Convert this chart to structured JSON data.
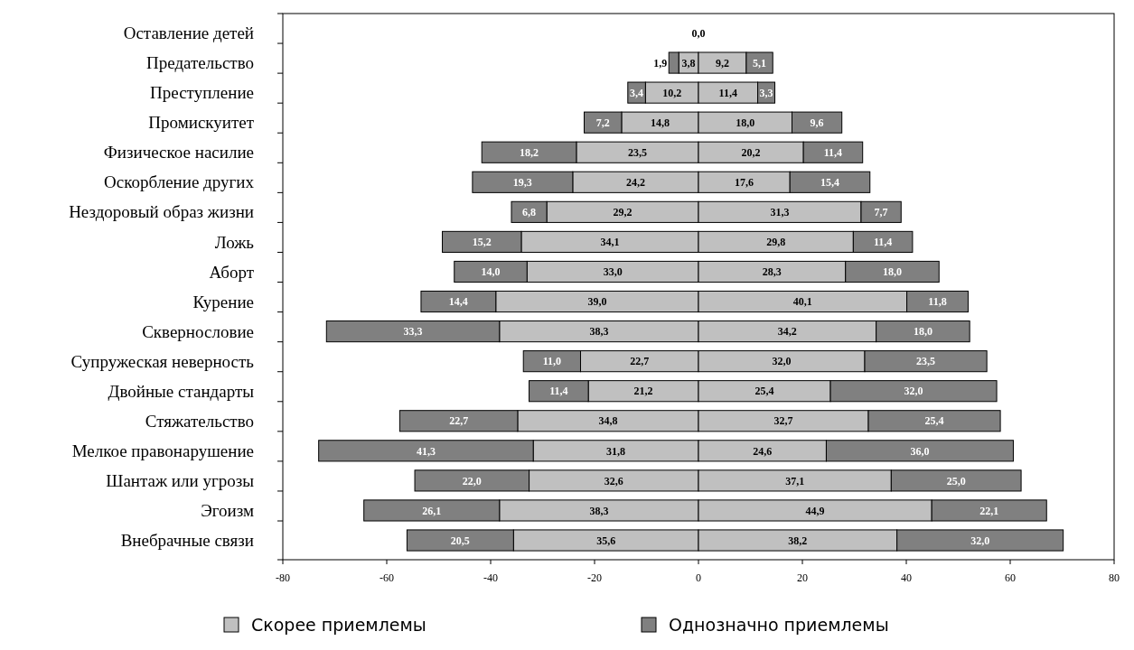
{
  "chart_data": {
    "type": "bar",
    "orientation": "horizontal",
    "categories": [
      "Оставление детей",
      "Предательство",
      "Преступление",
      "Промискуитет",
      "Физическое насилие",
      "Оскорбление других",
      "Нездоровый образ жизни",
      "Ложь ",
      "Аборт",
      "Курение",
      "Сквернословие",
      "Супружеская неверность",
      "Двойные стандарты",
      "Стяжательство",
      "Мелкое правонарушение",
      "Шантаж или угрозы",
      "Эгоизм",
      "Внебрачные связи"
    ],
    "series": [
      {
        "color": "#c0c0c0",
        "values": [
          null,
          3.8,
          10.2,
          14.8,
          23.5,
          24.2,
          29.2,
          34.1,
          33.0,
          39.0,
          38.3,
          22.7,
          21.2,
          34.8,
          31.8,
          32.6,
          38.3,
          35.6
        ],
        "base": [
          null,
          -3.8,
          -10.2,
          -14.8,
          -23.5,
          -24.2,
          -29.2,
          -34.1,
          -33.0,
          -39.0,
          -38.3,
          -22.7,
          -21.2,
          -34.8,
          -31.8,
          -32.6,
          -38.3,
          -35.6
        ],
        "value_labels": [
          null,
          "3,8",
          "10,2",
          "14,8",
          "23,5",
          "24,2",
          "29,2",
          "34,1",
          "33,0",
          "39,0",
          "38,3",
          "22,7",
          "21,2",
          "34,8",
          "31,8",
          "32,6",
          "38,3",
          "35,6"
        ]
      },
      {
        "name": "Скорее приемлемы",
        "color": "#c0c0c0",
        "values": [
          0,
          9.2,
          11.4,
          18.0,
          20.2,
          17.6,
          31.3,
          29.8,
          28.3,
          40.1,
          34.2,
          32.0,
          25.4,
          32.7,
          24.6,
          37.1,
          44.9,
          38.2
        ],
        "base": [
          null,
          0,
          0,
          0,
          0,
          0,
          0,
          0,
          0,
          0,
          0,
          0,
          0,
          0,
          0,
          0,
          0,
          0
        ],
        "value_labels": [
          "0,0",
          "9,2",
          "11,4",
          "18,0",
          "20,2",
          "17,6",
          "31,3",
          "29,8",
          "28,3",
          "40,1",
          "34,2",
          "32,0",
          "25,4",
          "32,7",
          "24,6",
          "37,1",
          "44,9",
          "38,2"
        ]
      },
      {
        "color": "#808080",
        "values": [
          null,
          1.9,
          3.4,
          7.2,
          18.2,
          19.3,
          6.8,
          15.2,
          14.0,
          14.4,
          33.3,
          11.0,
          11.4,
          22.7,
          41.3,
          22.0,
          26.1,
          20.5
        ],
        "base": [
          null,
          -5.7,
          -13.6,
          -22.0,
          -41.7,
          -43.5,
          -36.0,
          -49.3,
          -47.0,
          -53.4,
          -71.6,
          -33.7,
          -32.6,
          -57.5,
          -73.1,
          -54.6,
          -64.4,
          -56.1
        ],
        "value_labels": [
          null,
          "1,9",
          "3,4",
          "7,2",
          "18,2",
          "19,3",
          "6,8",
          "15,2",
          "14,0",
          "14,4",
          "33,3",
          "11,0",
          "11,4",
          "22,7",
          "41,3",
          "22,0",
          "26,1",
          "20,5"
        ]
      },
      {
        "name": "Однозначно приемлемы",
        "color": "#808080",
        "values": [
          null,
          5.1,
          3.3,
          9.6,
          11.4,
          15.4,
          7.7,
          11.4,
          18.0,
          11.8,
          18.0,
          23.5,
          32.0,
          25.4,
          36.0,
          25.0,
          22.1,
          32.0
        ],
        "base": [
          null,
          9.2,
          11.4,
          18.0,
          20.2,
          17.6,
          31.3,
          29.8,
          28.3,
          40.1,
          34.2,
          32.0,
          25.4,
          32.7,
          24.6,
          37.1,
          44.9,
          38.2
        ],
        "value_labels": [
          null,
          "5,1",
          "3,3",
          "9,6",
          "11,4",
          "15,4",
          "7,7",
          "11,4",
          "18,0",
          "11,8",
          "18,0",
          "23,5",
          "32,0",
          "25,4",
          "36,0",
          "25,0",
          "22,1",
          "32,0"
        ]
      }
    ],
    "xlim": [
      -80,
      80
    ],
    "xticks": [
      -80,
      -60,
      -40,
      -20,
      0,
      20,
      40,
      60,
      80
    ],
    "legend": "bottom"
  }
}
